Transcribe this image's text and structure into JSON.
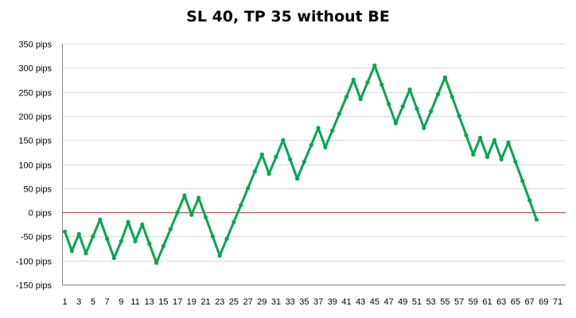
{
  "chart_data": {
    "type": "line",
    "title": "SL 40, TP 35 without BE",
    "xlabel": "",
    "ylabel": "",
    "ylim": [
      -150,
      350
    ],
    "y_ticks": [
      -150,
      -100,
      -50,
      0,
      50,
      100,
      150,
      200,
      250,
      300,
      350
    ],
    "y_tick_labels": [
      "-150 pips",
      "-100 pips",
      "-50 pips",
      "0 pips",
      "50 pips",
      "100 pips",
      "150 pips",
      "200 pips",
      "250 pips",
      "300 pips",
      "350 pips"
    ],
    "xlim": [
      1,
      71
    ],
    "x_tick_labels": [
      "1",
      "3",
      "5",
      "7",
      "9",
      "11",
      "13",
      "15",
      "17",
      "19",
      "21",
      "23",
      "25",
      "27",
      "29",
      "31",
      "33",
      "35",
      "37",
      "39",
      "41",
      "43",
      "45",
      "47",
      "49",
      "51",
      "53",
      "55",
      "57",
      "59",
      "61",
      "63",
      "65",
      "67",
      "69",
      "71"
    ],
    "grid": "horizontal",
    "legend": "none",
    "reference_line": {
      "y": 0,
      "color": "#c0504d"
    },
    "colors": {
      "series": "#00a650",
      "grid": "#d9d9d9",
      "axis": "#868686"
    },
    "series": [
      {
        "x": [
          1,
          2,
          3,
          4,
          5,
          6,
          7,
          8,
          9,
          10,
          11,
          12,
          13,
          14,
          15,
          16,
          17,
          18,
          19,
          20,
          21,
          22,
          23,
          24,
          25,
          26,
          27,
          28,
          29,
          30,
          31,
          32,
          33,
          34,
          35,
          36,
          37,
          38,
          39,
          40,
          41,
          42,
          43,
          44,
          45,
          46,
          47,
          48,
          49,
          50,
          51,
          52,
          53,
          54,
          55,
          56,
          57,
          58,
          59,
          60,
          61,
          62,
          63,
          64,
          65,
          66,
          67,
          68
        ],
        "values": [
          -40,
          -80,
          -45,
          -85,
          -50,
          -15,
          -55,
          -95,
          -60,
          -20,
          -60,
          -25,
          -65,
          -105,
          -70,
          -35,
          0,
          35,
          -5,
          30,
          -10,
          -50,
          -90,
          -55,
          -20,
          15,
          50,
          85,
          120,
          80,
          115,
          150,
          110,
          70,
          105,
          140,
          175,
          135,
          170,
          205,
          240,
          275,
          235,
          270,
          305,
          265,
          225,
          185,
          220,
          255,
          215,
          175,
          210,
          245,
          280,
          240,
          200,
          160,
          120,
          155,
          115,
          150,
          110,
          145,
          105,
          65,
          25,
          -15
        ]
      }
    ]
  }
}
